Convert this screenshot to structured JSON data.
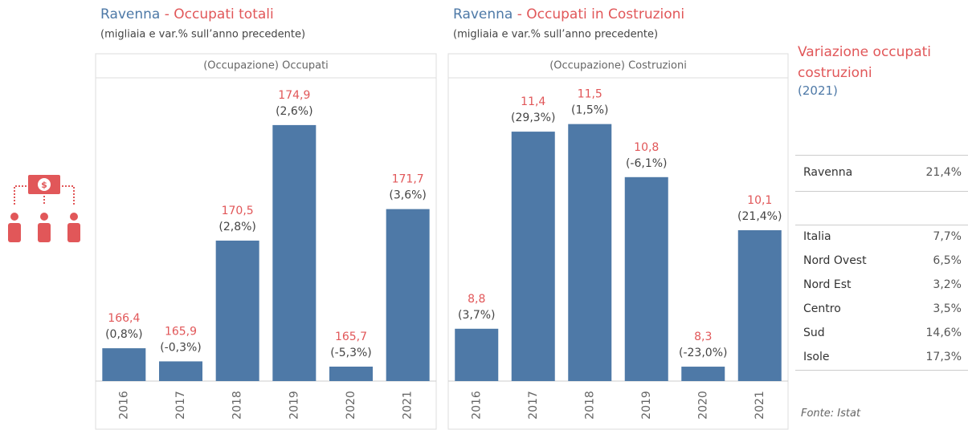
{
  "chart_data": [
    {
      "type": "bar",
      "place": "Ravenna",
      "title": "- Occupati totali",
      "subtitle": "(migliaia e var.% sull’anno precedente)",
      "panel_label": "(Occupazione) Occupati",
      "categories": [
        "2016",
        "2017",
        "2018",
        "2019",
        "2020",
        "2021"
      ],
      "values": [
        166.4,
        165.9,
        170.5,
        174.9,
        165.7,
        171.7
      ],
      "value_labels": [
        "166,4",
        "165,9",
        "170,5",
        "174,9",
        "165,7",
        "171,7"
      ],
      "change_labels": [
        "(0,8%)",
        "(-0,3%)",
        "(2,8%)",
        "(2,6%)",
        "(-5,3%)",
        "(3,6%)"
      ],
      "color": "#4e79a7",
      "label_color": "#e15759",
      "ylim": [
        165.15,
        176.7
      ]
    },
    {
      "type": "bar",
      "place": "Ravenna",
      "title": "- Occupati in Costruzioni",
      "subtitle": "(migliaia e var.% sull’anno precedente)",
      "panel_label": "(Occupazione) Costruzioni",
      "categories": [
        "2016",
        "2017",
        "2018",
        "2019",
        "2020",
        "2021"
      ],
      "values": [
        8.8,
        11.4,
        11.5,
        10.8,
        8.3,
        10.1
      ],
      "value_labels": [
        "8,8",
        "11,4",
        "11,5",
        "10,8",
        "8,3",
        "10,1"
      ],
      "change_labels": [
        "(3,7%)",
        "(29,3%)",
        "(1,5%)",
        "(-6,1%)",
        "(-23,0%)",
        "(21,4%)"
      ],
      "color": "#4e79a7",
      "label_color": "#e15759",
      "ylim": [
        8.11,
        12.11
      ]
    }
  ],
  "table": {
    "title": "Variazione occupati costruzioni",
    "year": "(2021)",
    "highlight": [
      [
        "Ravenna",
        "21,4%"
      ]
    ],
    "rows": [
      [
        "Italia",
        "7,7%"
      ],
      [
        "Nord Ovest",
        "6,5%"
      ],
      [
        "Nord Est",
        "3,2%"
      ],
      [
        "Centro",
        "3,5%"
      ],
      [
        "Sud",
        "14,6%"
      ],
      [
        "Isole",
        "17,3%"
      ]
    ]
  },
  "source": "Fonte: Istat"
}
